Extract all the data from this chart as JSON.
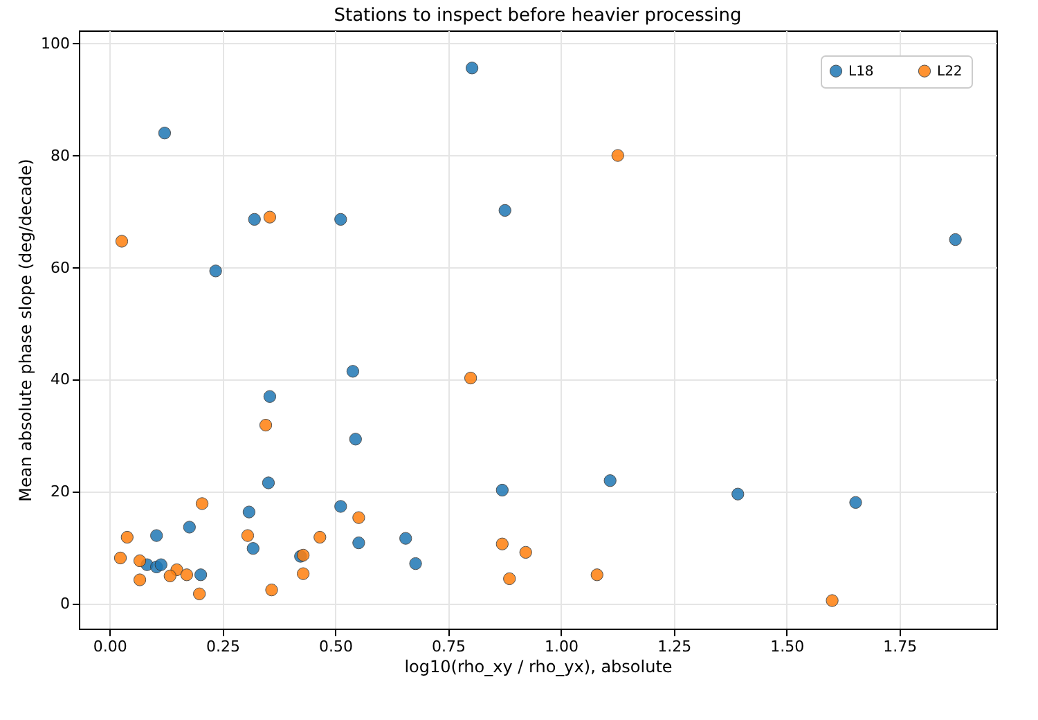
{
  "chart_data": {
    "type": "scatter",
    "title": "Stations to inspect before heavier processing",
    "xlabel": "log10(rho_xy / rho_yx), absolute",
    "ylabel": "Mean absolute phase slope (deg/decade)",
    "xlim": [
      -0.068,
      1.965
    ],
    "ylim": [
      -4.4,
      102.3
    ],
    "xticks": [
      {
        "value": 0,
        "label": "0.00"
      },
      0.25,
      {
        "value": 0.5,
        "label": "0.50"
      },
      0.75,
      {
        "value": 1,
        "label": "1.00"
      },
      1.25,
      {
        "value": 1.5,
        "label": "1.50"
      },
      1.75
    ],
    "yticks": [
      0,
      20,
      40,
      60,
      80,
      100
    ],
    "grid": true,
    "legend": "top right",
    "marker": "circle",
    "series": [
      {
        "name": "L18",
        "color": "#1f77b4",
        "x": [
          0.122,
          0.803,
          0.876,
          0.321,
          0.512,
          0.235,
          1.874,
          0.539,
          0.355,
          0.545,
          0.352,
          0.87,
          1.109,
          1.392,
          1.653,
          0.309,
          0.512,
          0.177,
          0.104,
          0.318,
          0.552,
          0.656,
          0.423,
          0.678,
          0.083,
          0.104,
          0.114,
          0.202
        ],
        "values": [
          84.0,
          95.6,
          70.2,
          68.6,
          68.6,
          59.4,
          65.0,
          41.5,
          37.0,
          29.4,
          21.6,
          20.3,
          22.0,
          19.6,
          18.1,
          16.4,
          17.4,
          13.7,
          12.2,
          9.9,
          10.9,
          11.7,
          8.5,
          7.2,
          7.0,
          6.6,
          7.0,
          5.2
        ]
      },
      {
        "name": "L22",
        "color": "#ff7f0e",
        "x": [
          1.126,
          0.355,
          0.027,
          0.8,
          0.346,
          0.205,
          0.552,
          0.039,
          0.306,
          0.466,
          0.87,
          0.922,
          0.429,
          0.024,
          0.067,
          0.149,
          0.134,
          0.171,
          0.067,
          0.429,
          1.08,
          0.886,
          0.199,
          0.359,
          1.601
        ],
        "values": [
          80.0,
          69.0,
          64.7,
          40.3,
          31.9,
          17.9,
          15.4,
          11.9,
          12.2,
          11.9,
          10.7,
          9.2,
          8.7,
          8.2,
          7.7,
          6.1,
          5.0,
          5.2,
          4.3,
          5.4,
          5.2,
          4.5,
          1.8,
          2.5,
          0.6
        ]
      }
    ]
  }
}
